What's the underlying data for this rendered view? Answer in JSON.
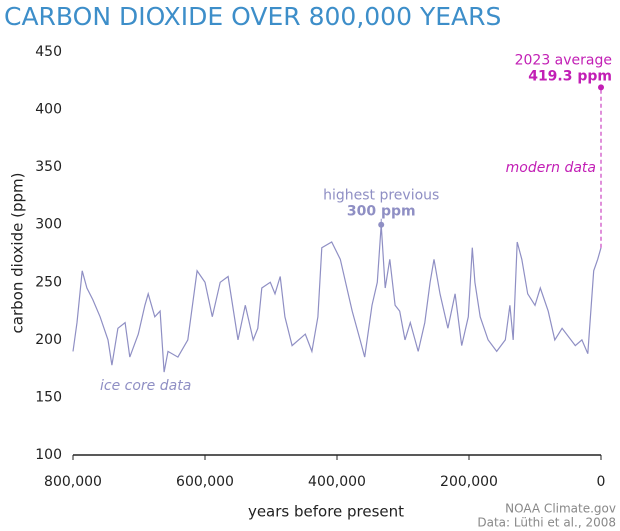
{
  "chart_data": {
    "type": "line",
    "title": "CARBON DIOXIDE OVER 800,000 YEARS",
    "xlabel": "years before present",
    "ylabel": "carbon dioxide (ppm)",
    "xlim": [
      800000,
      0
    ],
    "ylim": [
      100,
      450
    ],
    "xticks": [
      {
        "value": 800000,
        "label": "800,000"
      },
      {
        "value": 600000,
        "label": "600,000"
      },
      {
        "value": 400000,
        "label": "400,000"
      },
      {
        "value": 200000,
        "label": "200,000"
      },
      0
    ],
    "yticks": [
      100,
      150,
      200,
      250,
      300,
      350,
      400,
      450
    ],
    "grid": false,
    "series": [
      {
        "name": "ice core data",
        "color": "#8f8fc4",
        "x": [
          800000,
          794000,
          786000,
          779000,
          770000,
          759000,
          747000,
          741000,
          732000,
          721000,
          714000,
          701000,
          691000,
          686000,
          676000,
          668000,
          662000,
          656000,
          641000,
          626000,
          612000,
          600000,
          589000,
          577000,
          565000,
          550000,
          539000,
          527000,
          520000,
          514000,
          501000,
          494000,
          486000,
          479000,
          468000,
          448000,
          438000,
          429000,
          423000,
          408000,
          395000,
          383000,
          377000,
          365000,
          358000,
          347000,
          339000,
          333000,
          327000,
          320000,
          312000,
          305000,
          297000,
          289000,
          277000,
          267000,
          259000,
          253000,
          244000,
          232000,
          221000,
          211000,
          201000,
          195000,
          191000,
          183000,
          171000,
          158000,
          145000,
          138000,
          133000,
          127000,
          120000,
          111000,
          100000,
          92000,
          80000,
          70000,
          59000,
          39000,
          29000,
          20000,
          11000,
          5000,
          0
        ],
        "values": [
          190,
          215,
          260,
          245,
          235,
          220,
          200,
          178,
          210,
          215,
          185,
          205,
          230,
          240,
          220,
          225,
          172,
          190,
          185,
          200,
          260,
          250,
          220,
          250,
          255,
          200,
          230,
          200,
          210,
          245,
          250,
          240,
          255,
          220,
          195,
          205,
          190,
          220,
          280,
          285,
          270,
          240,
          225,
          200,
          185,
          230,
          250,
          300,
          245,
          270,
          230,
          225,
          200,
          215,
          190,
          215,
          250,
          270,
          240,
          210,
          240,
          195,
          220,
          280,
          250,
          220,
          200,
          190,
          200,
          230,
          200,
          285,
          270,
          240,
          230,
          245,
          225,
          200,
          210,
          195,
          200,
          188,
          260,
          270,
          280
        ]
      }
    ],
    "annotations": [
      {
        "text": "highest previous",
        "label": "300 ppm",
        "x": 333000,
        "y": 300,
        "color": "#8f8fc4"
      },
      {
        "text": "2023 average",
        "label": "419.3 ppm",
        "x": 0,
        "y": 419.3,
        "color": "#c21fb5"
      }
    ],
    "modern_label": "modern data",
    "source": [
      "NOAA Climate.gov",
      "Data: Lüthi et al., 2008"
    ]
  }
}
